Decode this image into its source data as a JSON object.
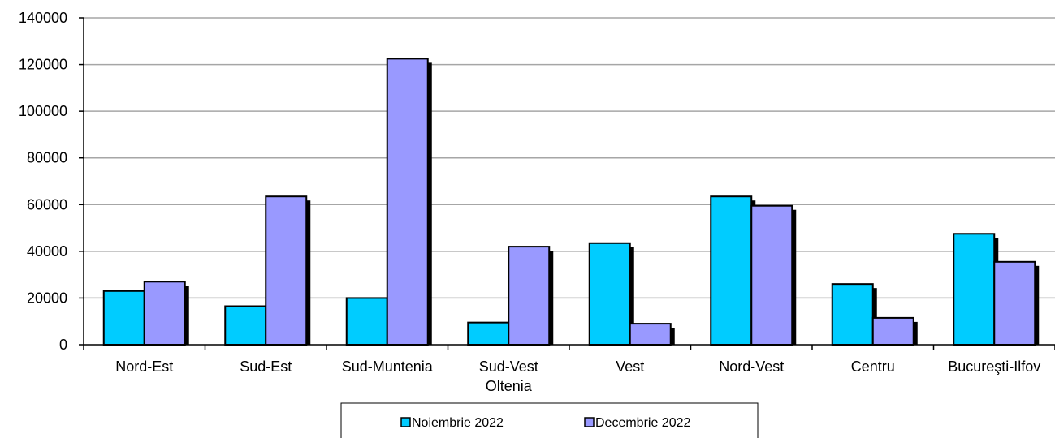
{
  "chart_data": {
    "type": "bar",
    "categories": [
      "Nord-Est",
      "Sud-Est",
      "Sud-Muntenia",
      "Sud-Vest\nOltenia",
      "Vest",
      "Nord-Vest",
      "Centru",
      "Bucureşti-Ilfov"
    ],
    "series": [
      {
        "name": "Noiembrie 2022",
        "color": "#00ccff",
        "values": [
          23000,
          16500,
          20000,
          9500,
          43500,
          63500,
          26000,
          47500
        ]
      },
      {
        "name": "Decembrie 2022",
        "color": "#9999ff",
        "values": [
          27000,
          63500,
          122500,
          42000,
          9000,
          59500,
          11500,
          35500
        ]
      }
    ],
    "ylim": [
      0,
      140000
    ],
    "yticks": [
      0,
      20000,
      40000,
      60000,
      80000,
      100000,
      120000,
      140000
    ],
    "grid": true,
    "legend_position": "bottom",
    "title": "",
    "xlabel": "",
    "ylabel": ""
  }
}
